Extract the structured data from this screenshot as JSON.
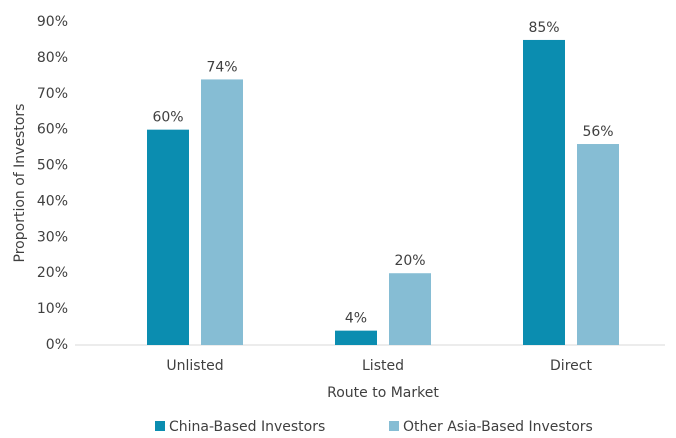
{
  "chart_data": {
    "type": "bar",
    "x_label": "Route to Market",
    "y_label": "Proportion of Investors",
    "categories": [
      "Unlisted",
      "Listed",
      "Direct"
    ],
    "series": [
      {
        "name": "China-Based Investors",
        "color": "#0b8db0",
        "values": [
          60,
          4,
          85
        ],
        "value_labels": [
          "60%",
          "4%",
          "85%"
        ]
      },
      {
        "name": "Other Asia-Based Investors",
        "color": "#86bdd4",
        "values": [
          74,
          20,
          56
        ],
        "value_labels": [
          "74%",
          "20%",
          "56%"
        ]
      }
    ],
    "ylim": [
      0,
      90
    ],
    "yticks": [
      {
        "value": 0,
        "label": "0%"
      },
      {
        "value": 10,
        "label": "10%"
      },
      {
        "value": 20,
        "label": "20%"
      },
      {
        "value": 30,
        "label": "30%"
      },
      {
        "value": 40,
        "label": "40%"
      },
      {
        "value": 50,
        "label": "50%"
      },
      {
        "value": 60,
        "label": "60%"
      },
      {
        "value": 70,
        "label": "70%"
      },
      {
        "value": 80,
        "label": "80%"
      },
      {
        "value": 90,
        "label": "90%"
      }
    ],
    "grid": false,
    "legend": "bottom"
  }
}
